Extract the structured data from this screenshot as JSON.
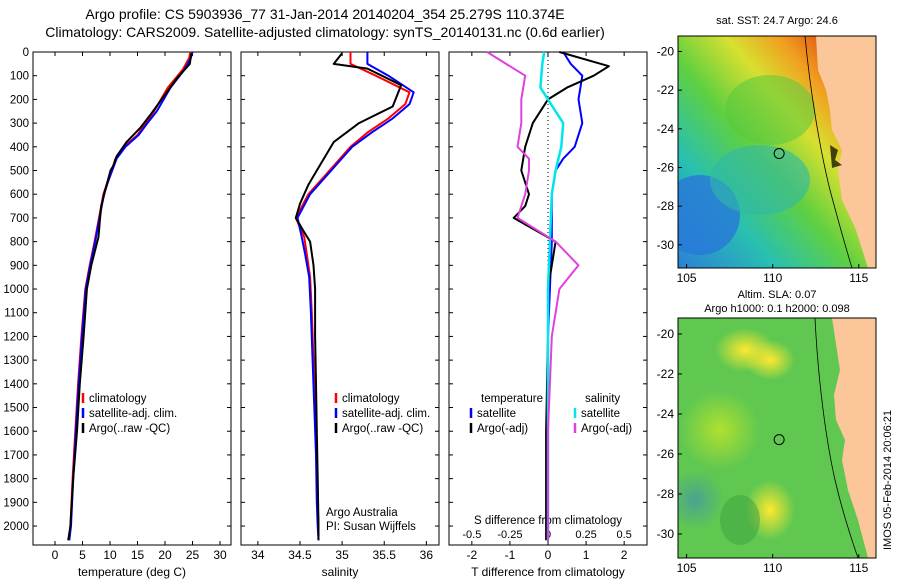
{
  "header": {
    "title_line1": "Argo profile: CS 5903936_77 31-Jan-2014 20140204_354 25.279S 110.374E",
    "title_line2": "Climatology: CARS2009. Satellite-adjusted climatology: synTS_20140131.nc (0.6d earlier)"
  },
  "colors": {
    "climatology": "#ff0000",
    "satellite": "#0000ff",
    "argo": "#000000",
    "sal_satellite": "#00e5ee",
    "sal_argo": "#e040e0",
    "land": "#fbc79a"
  },
  "chart_data": [
    {
      "type": "line",
      "xlabel": "temperature (deg C)",
      "ylabel": "",
      "xlim": [
        -4,
        32
      ],
      "ylim": [
        2080,
        0
      ],
      "xticks": [
        0,
        5,
        10,
        15,
        20,
        25,
        30
      ],
      "yticks": [
        0,
        100,
        200,
        300,
        400,
        500,
        600,
        700,
        800,
        900,
        1000,
        1100,
        1200,
        1300,
        1400,
        1500,
        1600,
        1700,
        1800,
        1900,
        2000
      ],
      "legend": [
        "climatology",
        "satellite-adj. clim.",
        "Argo(..raw -QC)"
      ],
      "series": [
        {
          "name": "climatology",
          "color": "climatology",
          "x": [
            24.6,
            24.4,
            23.2,
            20.5,
            18.0,
            16.5,
            15.0,
            12.5,
            11.0,
            10.3,
            9.5,
            8.8,
            8.0,
            7.2,
            6.3,
            5.5,
            4.8,
            4.2,
            3.7,
            3.2,
            2.8,
            2.5
          ],
          "y": [
            0,
            25,
            75,
            150,
            250,
            300,
            350,
            400,
            450,
            500,
            550,
            600,
            700,
            800,
            900,
            1000,
            1200,
            1400,
            1600,
            1800,
            2000,
            2060
          ]
        },
        {
          "name": "satellite-adj. clim.",
          "color": "satellite",
          "x": [
            25.0,
            24.7,
            23.5,
            21.0,
            18.5,
            16.8,
            15.2,
            12.8,
            11.2,
            10.4,
            9.6,
            8.9,
            8.1,
            7.3,
            6.4,
            5.6,
            4.9,
            4.3,
            3.8,
            3.3,
            2.9,
            2.6
          ],
          "y": [
            0,
            25,
            75,
            150,
            250,
            300,
            350,
            400,
            450,
            500,
            550,
            600,
            700,
            800,
            900,
            1000,
            1200,
            1400,
            1600,
            1800,
            2000,
            2060
          ]
        },
        {
          "name": "Argo(..raw -QC)",
          "color": "argo",
          "x": [
            24.8,
            24.5,
            22.2,
            20.0,
            17.5,
            15.5,
            13.0,
            11.2,
            10.6,
            10.1,
            9.4,
            8.4,
            8.2,
            7.9,
            6.6,
            5.8,
            5.2,
            4.5,
            4.0,
            3.3,
            2.8,
            2.4
          ],
          "y": [
            5,
            50,
            110,
            180,
            260,
            320,
            380,
            440,
            480,
            500,
            560,
            650,
            700,
            780,
            900,
            1000,
            1200,
            1400,
            1600,
            1800,
            2000,
            2060
          ]
        }
      ]
    },
    {
      "type": "line",
      "xlabel": "salinity",
      "ylabel": "",
      "xlim": [
        33.8,
        36.15
      ],
      "ylim": [
        2080,
        0
      ],
      "xticks": [
        34,
        34.5,
        35,
        35.5,
        36
      ],
      "legend": [
        "climatology",
        "satellite-adj. clim.",
        "Argo(..raw -QC)"
      ],
      "annotation": [
        "Argo Australia",
        "PI: Susan Wijffels"
      ],
      "series": [
        {
          "name": "climatology",
          "color": "climatology",
          "x": [
            35.1,
            35.1,
            35.4,
            35.8,
            35.75,
            35.55,
            35.3,
            35.1,
            34.95,
            34.8,
            34.6,
            34.45,
            34.55,
            34.58,
            34.62,
            34.64,
            34.66,
            34.68,
            34.7,
            34.71,
            34.72,
            34.72
          ],
          "y": [
            0,
            50,
            100,
            170,
            220,
            280,
            340,
            400,
            460,
            520,
            600,
            700,
            780,
            850,
            950,
            1100,
            1300,
            1500,
            1700,
            1900,
            2000,
            2060
          ]
        },
        {
          "name": "satellite-adj. clim.",
          "color": "satellite",
          "x": [
            35.3,
            35.3,
            35.55,
            35.85,
            35.8,
            35.6,
            35.35,
            35.12,
            34.97,
            34.82,
            34.62,
            34.47,
            34.52,
            34.56,
            34.61,
            34.63,
            34.65,
            34.67,
            34.69,
            34.7,
            34.71,
            34.72
          ],
          "y": [
            0,
            50,
            100,
            170,
            220,
            280,
            340,
            400,
            460,
            520,
            600,
            700,
            780,
            850,
            950,
            1100,
            1300,
            1500,
            1700,
            1900,
            2000,
            2060
          ]
        },
        {
          "name": "Argo(..raw -QC)",
          "color": "argo",
          "x": [
            35.0,
            34.9,
            35.3,
            35.7,
            35.6,
            35.2,
            34.9,
            34.8,
            34.7,
            34.6,
            34.5,
            34.45,
            34.55,
            34.62,
            34.66,
            34.68,
            34.68,
            34.69,
            34.7,
            34.71,
            34.72,
            34.72
          ],
          "y": [
            5,
            50,
            70,
            140,
            230,
            300,
            380,
            440,
            500,
            560,
            640,
            700,
            760,
            800,
            900,
            1000,
            1200,
            1400,
            1600,
            1800,
            2000,
            2060
          ]
        }
      ]
    },
    {
      "type": "line",
      "xlabel": "T difference from climatology",
      "title_bottom": "S difference from climatology",
      "ylabel": "",
      "xlim": [
        -2.6,
        2.6
      ],
      "ylim": [
        2080,
        0
      ],
      "xticks": [
        -2,
        -1,
        0,
        1,
        2
      ],
      "sticks": [
        "-0.5",
        "-0.25",
        "0",
        "0.25",
        "0.5"
      ],
      "legend_left": [
        "temperature",
        "satellite",
        "Argo(-adj)"
      ],
      "legend_right": [
        "salinity",
        "satellite",
        "Argo(-adj)"
      ],
      "series": [
        {
          "name": "temperature satellite",
          "color": "satellite",
          "x": [
            0.4,
            0.6,
            0.9,
            0.8,
            0.9,
            0.7,
            0.4,
            0.2,
            0.1,
            0.1,
            0.05,
            0.0,
            0.0,
            0.0,
            0.0,
            0.0
          ],
          "y": [
            0,
            50,
            100,
            200,
            300,
            400,
            450,
            500,
            600,
            800,
            1000,
            1200,
            1400,
            1600,
            1800,
            2060
          ]
        },
        {
          "name": "temperature Argo(-adj)",
          "color": "argo",
          "x": [
            0.3,
            1.6,
            1.2,
            0.5,
            0.0,
            -0.4,
            -0.6,
            -0.7,
            -0.5,
            -0.6,
            -0.9,
            0.2,
            0.1,
            0.0,
            0.0,
            -0.05,
            -0.05
          ],
          "y": [
            0,
            60,
            100,
            150,
            200,
            300,
            400,
            500,
            600,
            650,
            700,
            800,
            900,
            1000,
            1200,
            1600,
            2060
          ]
        },
        {
          "name": "salinity satellite",
          "color": "sal_satellite",
          "x": [
            -0.1,
            -0.15,
            -0.2,
            0.2,
            0.4,
            0.35,
            0.2,
            0.1,
            0.05,
            0.0,
            0.0,
            0.0,
            0.0,
            0.0
          ],
          "y": [
            0,
            50,
            150,
            250,
            300,
            400,
            500,
            600,
            800,
            1000,
            1200,
            1400,
            1600,
            2060
          ]
        },
        {
          "name": "salinity Argo(-adj)",
          "color": "sal_argo",
          "x": [
            -1.6,
            -1.0,
            -0.6,
            -0.7,
            -0.7,
            -0.8,
            -0.5,
            -0.5,
            -0.6,
            -0.8,
            0.2,
            0.8,
            0.3,
            0.1,
            0.0,
            0.0
          ],
          "y": [
            0,
            60,
            100,
            200,
            300,
            400,
            450,
            500,
            600,
            700,
            800,
            900,
            1000,
            1200,
            1600,
            2060
          ]
        }
      ]
    }
  ],
  "maps": {
    "sst": {
      "title": "sat. SST: 24.7  Argo: 24.6",
      "xticks": [
        "105",
        "110",
        "115"
      ],
      "yticks": [
        "-20",
        "-22",
        "-24",
        "-26",
        "-28",
        "-30"
      ]
    },
    "sla": {
      "title1": "Altim. SLA: 0.07",
      "title2": "Argo h1000: 0.1 h2000: 0.098",
      "xticks": [
        "105",
        "110",
        "115"
      ],
      "yticks": [
        "-20",
        "-22",
        "-24",
        "-26",
        "-28",
        "-30"
      ]
    },
    "argo_lon": 110.374,
    "argo_lat": -25.279,
    "stamp": "IMOS 05-Feb-2014 20:06:21"
  }
}
